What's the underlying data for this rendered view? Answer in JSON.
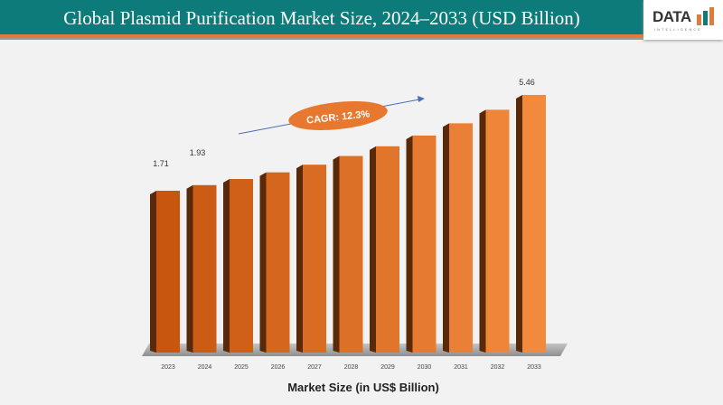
{
  "header": {
    "title": "Global Plasmid Purification Market Size, 2024–2033 (USD Billion)",
    "logo_text": "DATA",
    "logo_sub": "INTELLIGENCE"
  },
  "chart_data": {
    "type": "bar",
    "title": "Global Plasmid Purification Market Size, 2024–2033 (USD Billion)",
    "xlabel": "Market Size (in US$ Billion)",
    "ylabel": "",
    "categories": [
      "2023",
      "2024",
      "2025",
      "2026",
      "2027",
      "2028",
      "2029",
      "2030",
      "2031",
      "2032",
      "2033"
    ],
    "values": [
      1.71,
      1.93,
      2.17,
      2.43,
      2.73,
      3.07,
      3.45,
      3.87,
      4.35,
      4.88,
      5.46
    ],
    "data_labels": {
      "0": "1.71",
      "1": "1.93",
      "10": "5.46"
    },
    "annotation": "CAGR: 12.3%",
    "grid": false,
    "colors": {
      "bar_start": "#c8560f",
      "bar_end": "#f28a3e",
      "side": "#5a2a08",
      "platform": "#a9a9a9",
      "ellipse": "#e8782f",
      "arrow": "#4a6fb5"
    }
  }
}
